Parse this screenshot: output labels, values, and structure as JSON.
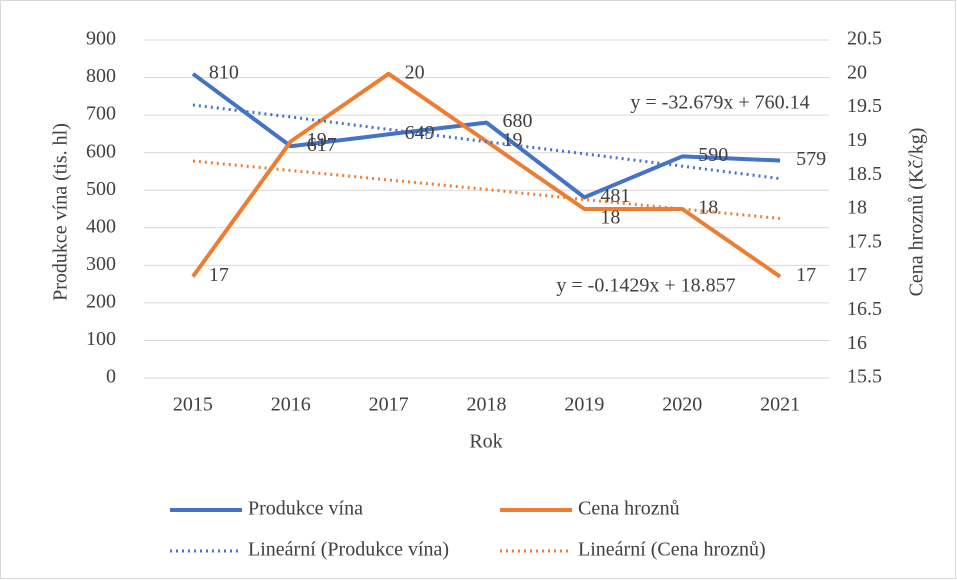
{
  "chart_data": {
    "type": "line",
    "x_label": "Rok",
    "y_label": "Produkce vína (tis. hl)",
    "y2_label": "Cena hroznů (Kč/kg)",
    "categories": [
      "2015",
      "2016",
      "2017",
      "2018",
      "2019",
      "2020",
      "2021"
    ],
    "series": [
      {
        "name": "Produkce vína",
        "color": "#4472c4",
        "values": [
          810,
          617,
          649,
          680,
          481,
          590,
          579
        ],
        "style": "solid",
        "data_labels": true
      },
      {
        "name": "Cena hroznů",
        "color": "#ed7d31",
        "values": [
          17,
          19,
          20,
          19,
          18,
          18,
          17
        ],
        "axis": "y2",
        "style": "solid",
        "data_labels": true
      },
      {
        "name": "Lineární (Produkce vína)",
        "color": "#4472c4",
        "values": [
          727,
          695,
          662,
          629,
          597,
          564,
          531
        ],
        "style": "dotted"
      },
      {
        "name": "Lineární (Cena hroznů)",
        "color": "#ed7d31",
        "values": [
          18.71,
          18.57,
          18.43,
          18.29,
          18.14,
          18.0,
          17.86
        ],
        "axis": "y2",
        "style": "dotted"
      }
    ],
    "annotations": [
      "y = -32.679x + 760.14",
      "y = -0.1429x + 18.857"
    ],
    "ylim": [
      0,
      900
    ],
    "yticks": [
      0,
      100,
      200,
      300,
      400,
      500,
      600,
      700,
      800,
      900
    ],
    "y2lim": [
      15.5,
      20.5
    ],
    "y2ticks": [
      15.5,
      16,
      16.5,
      17,
      17.5,
      18,
      18.5,
      19,
      19.5,
      20,
      20.5
    ],
    "grid": true
  }
}
